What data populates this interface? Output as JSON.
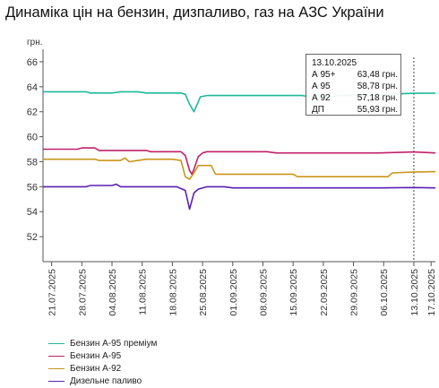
{
  "title": "Динаміка цін на бензин, дизпаливо, газ на АЗС України",
  "chart_data": {
    "type": "line",
    "title": "Динаміка цін на бензин, дизпаливо, газ на АЗС України",
    "ylabel": "грн.",
    "xlabel": "",
    "ylim": [
      50,
      67
    ],
    "yticks": [
      52,
      54,
      56,
      58,
      60,
      62,
      64,
      66
    ],
    "xtick_labels": [
      "21.07.2025",
      "28.07.2025",
      "04.08.2025",
      "11.08.2025",
      "18.08.2025",
      "25.08.2025",
      "01.09.2025",
      "08.09.2025",
      "15.09.2025",
      "22.09.2025",
      "29.09.2025",
      "06.10.2025",
      "13.10.2025",
      "17.10.2025"
    ],
    "xtick_days": [
      0,
      7,
      14,
      21,
      28,
      35,
      42,
      49,
      56,
      63,
      70,
      77,
      84,
      88
    ],
    "day0_label": "21.07.2025",
    "x_range_days": [
      -2,
      89
    ],
    "grid": false,
    "legend_position": "bottom-left",
    "crosshair_day": 84,
    "series": [
      {
        "name": "Бензин А-95 преміум",
        "color": "#1fb89a",
        "points": [
          [
            -2,
            63.6
          ],
          [
            4,
            63.6
          ],
          [
            8,
            63.6
          ],
          [
            9,
            63.5
          ],
          [
            14,
            63.5
          ],
          [
            16,
            63.6
          ],
          [
            20,
            63.6
          ],
          [
            22,
            63.5
          ],
          [
            30,
            63.5
          ],
          [
            31,
            63.4
          ],
          [
            32,
            62.6
          ],
          [
            33,
            62.0
          ],
          [
            34,
            62.8
          ],
          [
            34.5,
            63.2
          ],
          [
            36,
            63.3
          ],
          [
            50,
            63.3
          ],
          [
            58,
            63.3
          ],
          [
            60,
            63.2
          ],
          [
            62,
            63.3
          ],
          [
            64,
            63.2
          ],
          [
            67,
            63.3
          ],
          [
            72,
            63.3
          ],
          [
            76,
            63.3
          ],
          [
            78,
            63.4
          ],
          [
            84,
            63.48
          ],
          [
            89,
            63.48
          ]
        ]
      },
      {
        "name": "Бензин А-95",
        "color": "#c0206a",
        "points": [
          [
            -2,
            59.0
          ],
          [
            6,
            59.0
          ],
          [
            7,
            59.1
          ],
          [
            10,
            59.1
          ],
          [
            11,
            58.9
          ],
          [
            22,
            58.9
          ],
          [
            23,
            58.8
          ],
          [
            30,
            58.8
          ],
          [
            31,
            58.5
          ],
          [
            32,
            57.3
          ],
          [
            32.5,
            57.0
          ],
          [
            33,
            57.4
          ],
          [
            34,
            58.4
          ],
          [
            35,
            58.7
          ],
          [
            36,
            58.8
          ],
          [
            50,
            58.8
          ],
          [
            52,
            58.7
          ],
          [
            76,
            58.7
          ],
          [
            84,
            58.78
          ],
          [
            89,
            58.7
          ]
        ]
      },
      {
        "name": "Бензин А-92",
        "color": "#c9961a",
        "points": [
          [
            -2,
            58.2
          ],
          [
            10,
            58.2
          ],
          [
            11,
            58.1
          ],
          [
            16,
            58.1
          ],
          [
            17,
            58.3
          ],
          [
            18,
            58.0
          ],
          [
            20,
            58.1
          ],
          [
            22,
            58.2
          ],
          [
            28,
            58.2
          ],
          [
            30,
            58.1
          ],
          [
            31,
            56.8
          ],
          [
            32,
            56.6
          ],
          [
            33,
            57.1
          ],
          [
            34,
            57.7
          ],
          [
            37,
            57.7
          ],
          [
            38,
            57.0
          ],
          [
            44,
            57.0
          ],
          [
            50,
            57.0
          ],
          [
            56,
            57.0
          ],
          [
            57,
            56.8
          ],
          [
            70,
            56.8
          ],
          [
            78,
            56.8
          ],
          [
            79,
            57.1
          ],
          [
            84,
            57.18
          ],
          [
            89,
            57.2
          ]
        ]
      },
      {
        "name": "Дизельне паливо",
        "color": "#5a1fb5",
        "points": [
          [
            -2,
            56.0
          ],
          [
            8,
            56.0
          ],
          [
            9,
            56.1
          ],
          [
            14,
            56.1
          ],
          [
            15,
            56.2
          ],
          [
            16,
            56.0
          ],
          [
            24,
            56.0
          ],
          [
            29,
            56.0
          ],
          [
            31,
            55.7
          ],
          [
            32,
            54.2
          ],
          [
            33,
            55.5
          ],
          [
            34,
            55.8
          ],
          [
            36,
            56.0
          ],
          [
            40,
            56.0
          ],
          [
            42,
            55.9
          ],
          [
            70,
            55.9
          ],
          [
            76,
            55.9
          ],
          [
            84,
            55.93
          ],
          [
            89,
            55.9
          ]
        ]
      }
    ]
  },
  "legend": [
    {
      "label": "Бензин А-95 преміум",
      "color": "#1fb89a"
    },
    {
      "label": "Бензин А-95",
      "color": "#c0206a"
    },
    {
      "label": "Бензин А-92",
      "color": "#c9961a"
    },
    {
      "label": "Дизельне паливо",
      "color": "#5a1fb5"
    }
  ],
  "tooltip": {
    "date": "13.10.2025",
    "rows": [
      {
        "name": "А 95+",
        "value": "63,48 грн."
      },
      {
        "name": "А 95",
        "value": "58,78 грн."
      },
      {
        "name": "А 92",
        "value": "57,18 грн."
      },
      {
        "name": "ДП",
        "value": "55,93 грн."
      }
    ]
  }
}
